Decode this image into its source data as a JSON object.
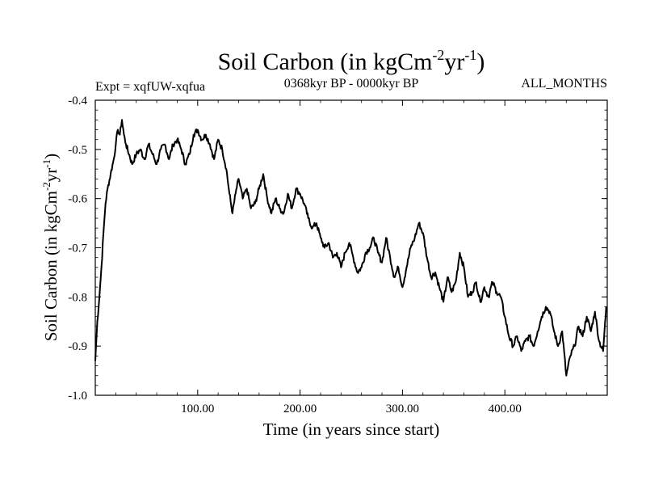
{
  "chart_data": {
    "type": "line",
    "title_main": "Soil Carbon (in kgCm",
    "title_sup1": "-2",
    "title_mid": "yr",
    "title_sup2": "-1",
    "title_end": ")",
    "subtitle_left": "Expt = xqfUW-xqfua",
    "subtitle_center": "0368kyr BP - 0000kyr BP",
    "subtitle_right": "ALL_MONTHS",
    "xlabel": "Time (in years since start)",
    "ylabel_main": "Soil Carbon (in kgCm",
    "ylabel_sup1": "-2",
    "ylabel_mid": "yr",
    "ylabel_sup2": "-1",
    "ylabel_end": ")",
    "xlim": [
      0,
      500
    ],
    "ylim": [
      -1.0,
      -0.4
    ],
    "xticks": [
      {
        "value": 100,
        "label": "100.00"
      },
      {
        "value": 200,
        "label": "200.00"
      },
      {
        "value": 300,
        "label": "300.00"
      },
      {
        "value": 400,
        "label": "400.00"
      }
    ],
    "yticks": [
      {
        "value": -0.4,
        "label": "-0.4"
      },
      {
        "value": -0.5,
        "label": "-0.5"
      },
      {
        "value": -0.6,
        "label": "-0.6"
      },
      {
        "value": -0.7,
        "label": "-0.7"
      },
      {
        "value": -0.8,
        "label": "-0.8"
      },
      {
        "value": -0.9,
        "label": "-0.9"
      },
      {
        "value": -1.0,
        "label": "-1.0"
      }
    ],
    "series": [
      {
        "name": "Soil Carbon",
        "x": [
          0,
          2,
          4,
          6,
          8,
          10,
          12,
          15,
          18,
          20,
          22,
          24,
          26,
          28,
          30,
          33,
          36,
          40,
          44,
          48,
          52,
          56,
          60,
          64,
          68,
          72,
          76,
          80,
          84,
          88,
          92,
          96,
          100,
          104,
          108,
          112,
          116,
          120,
          124,
          128,
          131,
          134,
          137,
          140,
          144,
          148,
          152,
          156,
          160,
          164,
          168,
          172,
          176,
          180,
          184,
          188,
          192,
          196,
          200,
          204,
          208,
          212,
          216,
          220,
          224,
          228,
          232,
          236,
          240,
          244,
          248,
          252,
          256,
          260,
          264,
          268,
          272,
          276,
          280,
          284,
          288,
          292,
          296,
          300,
          304,
          308,
          312,
          316,
          320,
          324,
          328,
          332,
          336,
          340,
          344,
          348,
          352,
          356,
          360,
          364,
          368,
          372,
          376,
          380,
          384,
          388,
          392,
          396,
          400,
          404,
          408,
          412,
          416,
          420,
          424,
          428,
          432,
          436,
          440,
          444,
          448,
          452,
          456,
          460,
          464,
          468,
          472,
          476,
          480,
          484,
          488,
          492,
          496,
          499
        ],
        "y": [
          -0.93,
          -0.85,
          -0.8,
          -0.74,
          -0.67,
          -0.61,
          -0.58,
          -0.55,
          -0.52,
          -0.49,
          -0.46,
          -0.47,
          -0.44,
          -0.47,
          -0.49,
          -0.51,
          -0.53,
          -0.51,
          -0.5,
          -0.52,
          -0.49,
          -0.51,
          -0.53,
          -0.5,
          -0.49,
          -0.52,
          -0.49,
          -0.48,
          -0.5,
          -0.53,
          -0.51,
          -0.47,
          -0.46,
          -0.48,
          -0.47,
          -0.49,
          -0.52,
          -0.48,
          -0.5,
          -0.54,
          -0.59,
          -0.63,
          -0.59,
          -0.56,
          -0.6,
          -0.58,
          -0.62,
          -0.61,
          -0.58,
          -0.55,
          -0.6,
          -0.63,
          -0.6,
          -0.62,
          -0.63,
          -0.59,
          -0.62,
          -0.58,
          -0.59,
          -0.61,
          -0.64,
          -0.66,
          -0.65,
          -0.68,
          -0.7,
          -0.69,
          -0.72,
          -0.71,
          -0.74,
          -0.71,
          -0.69,
          -0.72,
          -0.75,
          -0.74,
          -0.71,
          -0.7,
          -0.68,
          -0.71,
          -0.73,
          -0.68,
          -0.72,
          -0.76,
          -0.74,
          -0.78,
          -0.74,
          -0.7,
          -0.68,
          -0.65,
          -0.67,
          -0.72,
          -0.76,
          -0.75,
          -0.78,
          -0.81,
          -0.76,
          -0.79,
          -0.77,
          -0.71,
          -0.74,
          -0.8,
          -0.79,
          -0.77,
          -0.81,
          -0.78,
          -0.8,
          -0.77,
          -0.79,
          -0.8,
          -0.84,
          -0.88,
          -0.9,
          -0.88,
          -0.91,
          -0.89,
          -0.88,
          -0.9,
          -0.87,
          -0.84,
          -0.82,
          -0.83,
          -0.87,
          -0.9,
          -0.87,
          -0.96,
          -0.92,
          -0.9,
          -0.86,
          -0.88,
          -0.84,
          -0.87,
          -0.83,
          -0.89,
          -0.91,
          -0.82
        ]
      }
    ]
  }
}
